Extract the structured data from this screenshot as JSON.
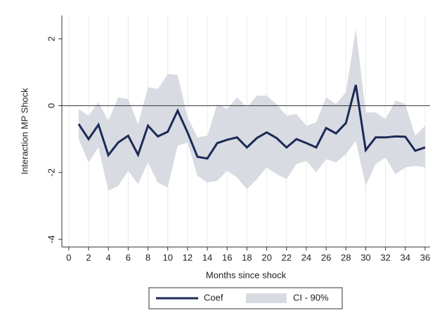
{
  "chart_data": {
    "type": "line",
    "xlabel": "Months since shock",
    "ylabel": "Interaction MP Shock",
    "x": [
      1,
      2,
      3,
      4,
      5,
      6,
      7,
      8,
      9,
      10,
      11,
      12,
      13,
      14,
      15,
      16,
      17,
      18,
      19,
      20,
      21,
      22,
      23,
      24,
      25,
      26,
      27,
      28,
      29,
      30,
      31,
      32,
      33,
      34,
      35,
      36
    ],
    "series": [
      {
        "name": "Coef",
        "color": "#1b2a57",
        "values": [
          -0.55,
          -1.0,
          -0.57,
          -1.48,
          -1.1,
          -0.9,
          -1.47,
          -0.6,
          -0.92,
          -0.78,
          -0.15,
          -0.8,
          -1.53,
          -1.58,
          -1.12,
          -1.02,
          -0.95,
          -1.25,
          -0.97,
          -0.8,
          -0.97,
          -1.25,
          -1.0,
          -1.12,
          -1.25,
          -0.67,
          -0.83,
          -0.52,
          0.62,
          -1.33,
          -0.95,
          -0.95,
          -0.92,
          -0.93,
          -1.35,
          -1.25
        ]
      },
      {
        "name": "CI - 90%",
        "color": "#d9dbe2",
        "upper": [
          -0.1,
          -0.3,
          0.1,
          -0.45,
          0.25,
          0.2,
          -0.55,
          0.55,
          0.5,
          0.95,
          0.92,
          -0.35,
          -0.95,
          -0.9,
          0.05,
          -0.1,
          0.25,
          -0.05,
          0.3,
          0.3,
          0.05,
          -0.3,
          -0.25,
          -0.6,
          -0.5,
          0.25,
          0.05,
          0.4,
          2.3,
          -0.2,
          -0.2,
          -0.4,
          0.15,
          0.05,
          -0.9,
          -0.6
        ],
        "lower": [
          -1.0,
          -1.7,
          -1.25,
          -2.55,
          -2.4,
          -1.95,
          -2.35,
          -1.7,
          -2.3,
          -2.45,
          -1.2,
          -1.1,
          -2.1,
          -2.3,
          -2.25,
          -1.95,
          -2.15,
          -2.5,
          -2.2,
          -1.85,
          -2.05,
          -2.2,
          -1.75,
          -1.65,
          -2.0,
          -1.6,
          -1.7,
          -1.45,
          -1.05,
          -2.4,
          -1.75,
          -1.55,
          -2.05,
          -1.85,
          -1.8,
          -1.85
        ]
      }
    ],
    "xlim": [
      -0.7,
      36.5
    ],
    "ylim": [
      -4.23,
      2.7
    ],
    "xticks": [
      0,
      2,
      4,
      6,
      8,
      10,
      12,
      14,
      16,
      18,
      20,
      22,
      24,
      26,
      28,
      30,
      32,
      34,
      36
    ],
    "yticks": [
      -4,
      -2,
      0,
      2
    ],
    "hline": 0,
    "xgrid": true
  }
}
